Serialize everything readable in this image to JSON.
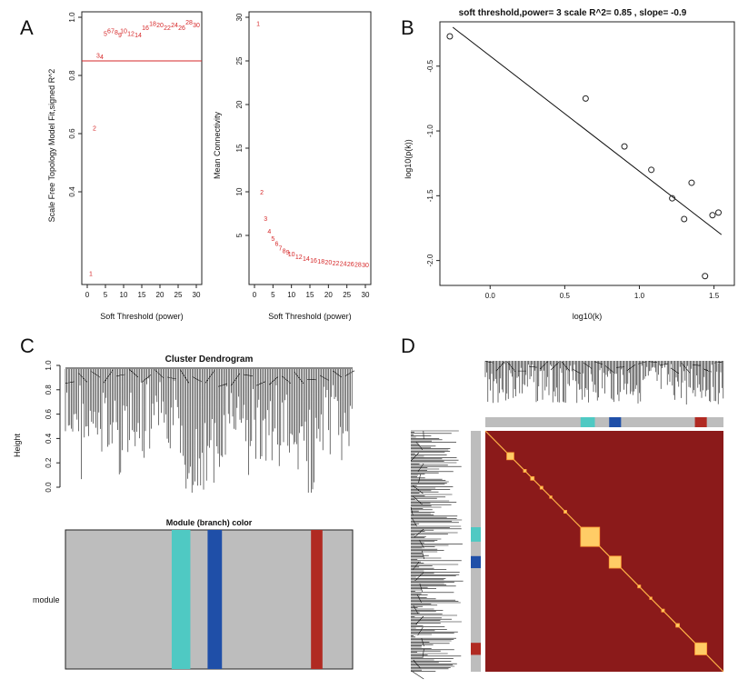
{
  "panel_labels": {
    "a": "A",
    "b": "B",
    "c": "C",
    "d": "D"
  },
  "colors": {
    "red": "#d62728",
    "turquoise": "#4fc9c3",
    "blue": "#1f4fa8",
    "brown": "#b02a22",
    "grey": "#bdbdbd",
    "heat": "#8b1a1a"
  },
  "chart_data": [
    {
      "id": "A-left",
      "type": "scatter",
      "title": "",
      "xlabel": "Soft Threshold (power)",
      "ylabel": "Scale Free Topology Model Fit,signed R^2",
      "xlim": [
        0,
        30
      ],
      "ylim": [
        0.1,
        1.0
      ],
      "xticks": [
        "0",
        "5",
        "10",
        "15",
        "20",
        "25",
        "30"
      ],
      "yticks": [
        "0.4",
        "0.6",
        "0.8",
        "1.0"
      ],
      "cutoff": 0.85,
      "x": [
        1,
        2,
        3,
        4,
        5,
        6,
        7,
        8,
        9,
        10,
        12,
        14,
        16,
        18,
        20,
        22,
        24,
        26,
        28,
        30
      ],
      "y": [
        0.12,
        0.62,
        0.87,
        0.865,
        0.945,
        0.955,
        0.955,
        0.95,
        0.94,
        0.955,
        0.945,
        0.94,
        0.965,
        0.98,
        0.975,
        0.965,
        0.975,
        0.965,
        0.985,
        0.975
      ],
      "point_labels": [
        "1",
        "2",
        "3",
        "4",
        "5",
        "6",
        "7",
        "8",
        "9",
        "10",
        "12",
        "14",
        "16",
        "18",
        "20",
        "22",
        "24",
        "26",
        "28",
        "30"
      ]
    },
    {
      "id": "A-right",
      "type": "scatter",
      "title": "",
      "xlabel": "Soft Threshold (power)",
      "ylabel": "Mean Connectivity",
      "xlim": [
        0,
        30
      ],
      "ylim": [
        0,
        30
      ],
      "xticks": [
        "0",
        "5",
        "10",
        "15",
        "20",
        "25",
        "30"
      ],
      "yticks": [
        "5",
        "10",
        "15",
        "20",
        "25",
        "30"
      ],
      "x": [
        1,
        2,
        3,
        4,
        5,
        6,
        7,
        8,
        9,
        10,
        12,
        14,
        16,
        18,
        20,
        22,
        24,
        26,
        28,
        30
      ],
      "y": [
        29.3,
        10.0,
        7.0,
        5.5,
        4.7,
        4.1,
        3.6,
        3.3,
        3.1,
        2.9,
        2.6,
        2.4,
        2.2,
        2.1,
        2.0,
        1.9,
        1.8,
        1.75,
        1.7,
        1.65
      ],
      "point_labels": [
        "1",
        "2",
        "3",
        "4",
        "5",
        "6",
        "7",
        "8",
        "9",
        "10",
        "12",
        "14",
        "16",
        "18",
        "20",
        "22",
        "24",
        "26",
        "28",
        "30"
      ]
    },
    {
      "id": "B",
      "type": "scatter",
      "title": "soft threshold,power= 3  scale R^2= 0.85 , slope= -0.9",
      "xlabel": "log10(k)",
      "ylabel": "log10(p(k))",
      "xlim": [
        -0.3,
        1.6
      ],
      "ylim": [
        -2.15,
        -0.2
      ],
      "xticks": [
        "0.0",
        "0.5",
        "1.0",
        "1.5"
      ],
      "yticks": [
        "-0.5",
        "-1.0",
        "-1.5",
        "-2.0"
      ],
      "x": [
        -0.27,
        0.64,
        0.9,
        1.08,
        1.22,
        1.3,
        1.35,
        1.44,
        1.49,
        1.53
      ],
      "y": [
        -0.27,
        -0.75,
        -1.12,
        -1.3,
        -1.52,
        -1.68,
        -1.4,
        -2.12,
        -1.65,
        -1.63
      ],
      "fit_line": {
        "x": [
          -0.25,
          1.55
        ],
        "y": [
          -0.2,
          -1.8
        ]
      }
    }
  ],
  "panelC": {
    "title": "Cluster Dendrogram",
    "ylabel": "Height",
    "yticks": [
      "0.0",
      "0.2",
      "0.4",
      "0.6",
      "0.8",
      "1.0"
    ],
    "module_title": "Module (branch) color",
    "module_label": "module",
    "modules": [
      {
        "name": "turquoise",
        "start": 0.37,
        "end": 0.435
      },
      {
        "name": "blue",
        "start": 0.495,
        "end": 0.545
      },
      {
        "name": "brown",
        "start": 0.855,
        "end": 0.895
      }
    ]
  },
  "panelD": {
    "modules": [
      {
        "name": "turquoise",
        "start": 0.4,
        "end": 0.46
      },
      {
        "name": "blue",
        "start": 0.52,
        "end": 0.57
      },
      {
        "name": "brown",
        "start": 0.88,
        "end": 0.93
      }
    ],
    "blocks": [
      0.09,
      0.16,
      0.19,
      0.23,
      0.27,
      0.33,
      0.4,
      0.52,
      0.64,
      0.69,
      0.74,
      0.8,
      0.88
    ]
  }
}
